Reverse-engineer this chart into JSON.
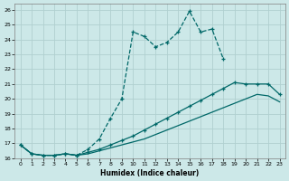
{
  "title": "",
  "xlabel": "Humidex (Indice chaleur)",
  "bg_color": "#cce8e8",
  "grid_color": "#b0d0d0",
  "line_color": "#006868",
  "xlim": [
    -0.5,
    23.5
  ],
  "ylim": [
    16,
    26.4
  ],
  "xticks": [
    0,
    1,
    2,
    3,
    4,
    5,
    6,
    7,
    8,
    9,
    10,
    11,
    12,
    13,
    14,
    15,
    16,
    17,
    18,
    19,
    20,
    21,
    22,
    23
  ],
  "yticks": [
    16,
    17,
    18,
    19,
    20,
    21,
    22,
    23,
    24,
    25,
    26
  ],
  "line1_x": [
    0,
    1,
    2,
    3,
    4,
    5,
    6,
    7,
    8,
    9,
    10,
    11,
    12,
    13,
    14,
    15,
    16,
    17,
    18
  ],
  "line1_y": [
    16.9,
    16.3,
    16.2,
    16.2,
    16.3,
    16.2,
    16.6,
    17.3,
    18.7,
    20.0,
    24.5,
    24.2,
    23.5,
    23.8,
    24.5,
    25.9,
    24.5,
    24.7,
    22.7
  ],
  "line2_x": [
    0,
    1,
    2,
    3,
    4,
    5,
    6,
    7,
    8,
    9,
    10,
    11,
    12,
    13,
    14,
    15,
    16,
    17,
    18,
    19,
    20,
    21,
    22,
    23
  ],
  "line2_y": [
    16.9,
    16.3,
    16.2,
    16.2,
    16.3,
    16.2,
    16.4,
    16.6,
    16.9,
    17.2,
    17.5,
    17.9,
    18.3,
    18.7,
    19.1,
    19.5,
    19.9,
    20.3,
    20.7,
    21.1,
    21.0,
    21.0,
    21.0,
    20.3
  ],
  "line3_x": [
    0,
    1,
    2,
    3,
    4,
    5,
    6,
    7,
    8,
    9,
    10,
    11,
    12,
    13,
    14,
    15,
    16,
    17,
    18,
    19,
    20,
    21,
    22,
    23
  ],
  "line3_y": [
    16.9,
    16.3,
    16.2,
    16.2,
    16.3,
    16.2,
    16.3,
    16.5,
    16.7,
    16.9,
    17.1,
    17.3,
    17.6,
    17.9,
    18.2,
    18.5,
    18.8,
    19.1,
    19.4,
    19.7,
    20.0,
    20.3,
    20.2,
    19.8
  ]
}
